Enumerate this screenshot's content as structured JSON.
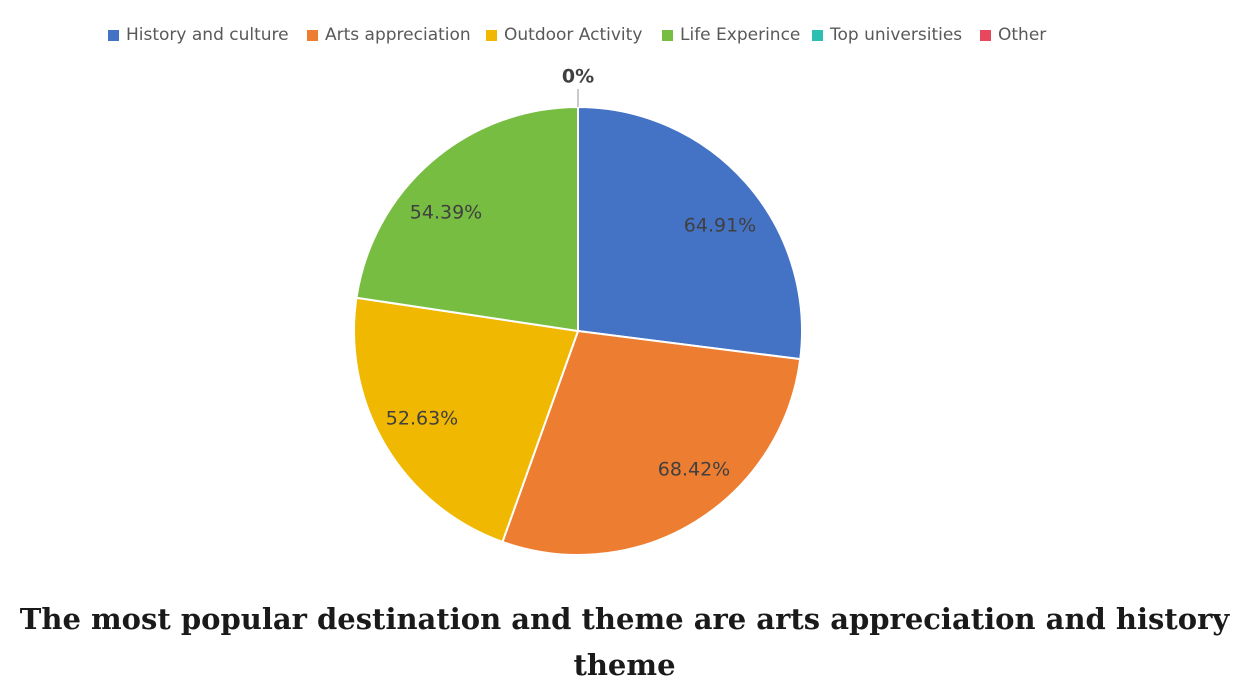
{
  "caption": "The most popular destination and theme are arts appreciation and history theme",
  "chart_data": {
    "type": "pie",
    "title": "",
    "legend_position": "top",
    "categories": [
      "History and culture",
      "Arts appreciation",
      "Outdoor Activity",
      "Life Experince",
      "Top universities",
      "Other"
    ],
    "values": [
      64.91,
      68.42,
      52.63,
      54.39,
      0,
      0
    ],
    "labels": [
      "64.91%",
      "68.42%",
      "52.63%",
      "54.39%",
      "0%",
      ""
    ],
    "colors": [
      "#4472C4",
      "#ED7D31",
      "#F0B800",
      "#76BD41",
      "#2EBFB3",
      "#E8485D"
    ]
  }
}
